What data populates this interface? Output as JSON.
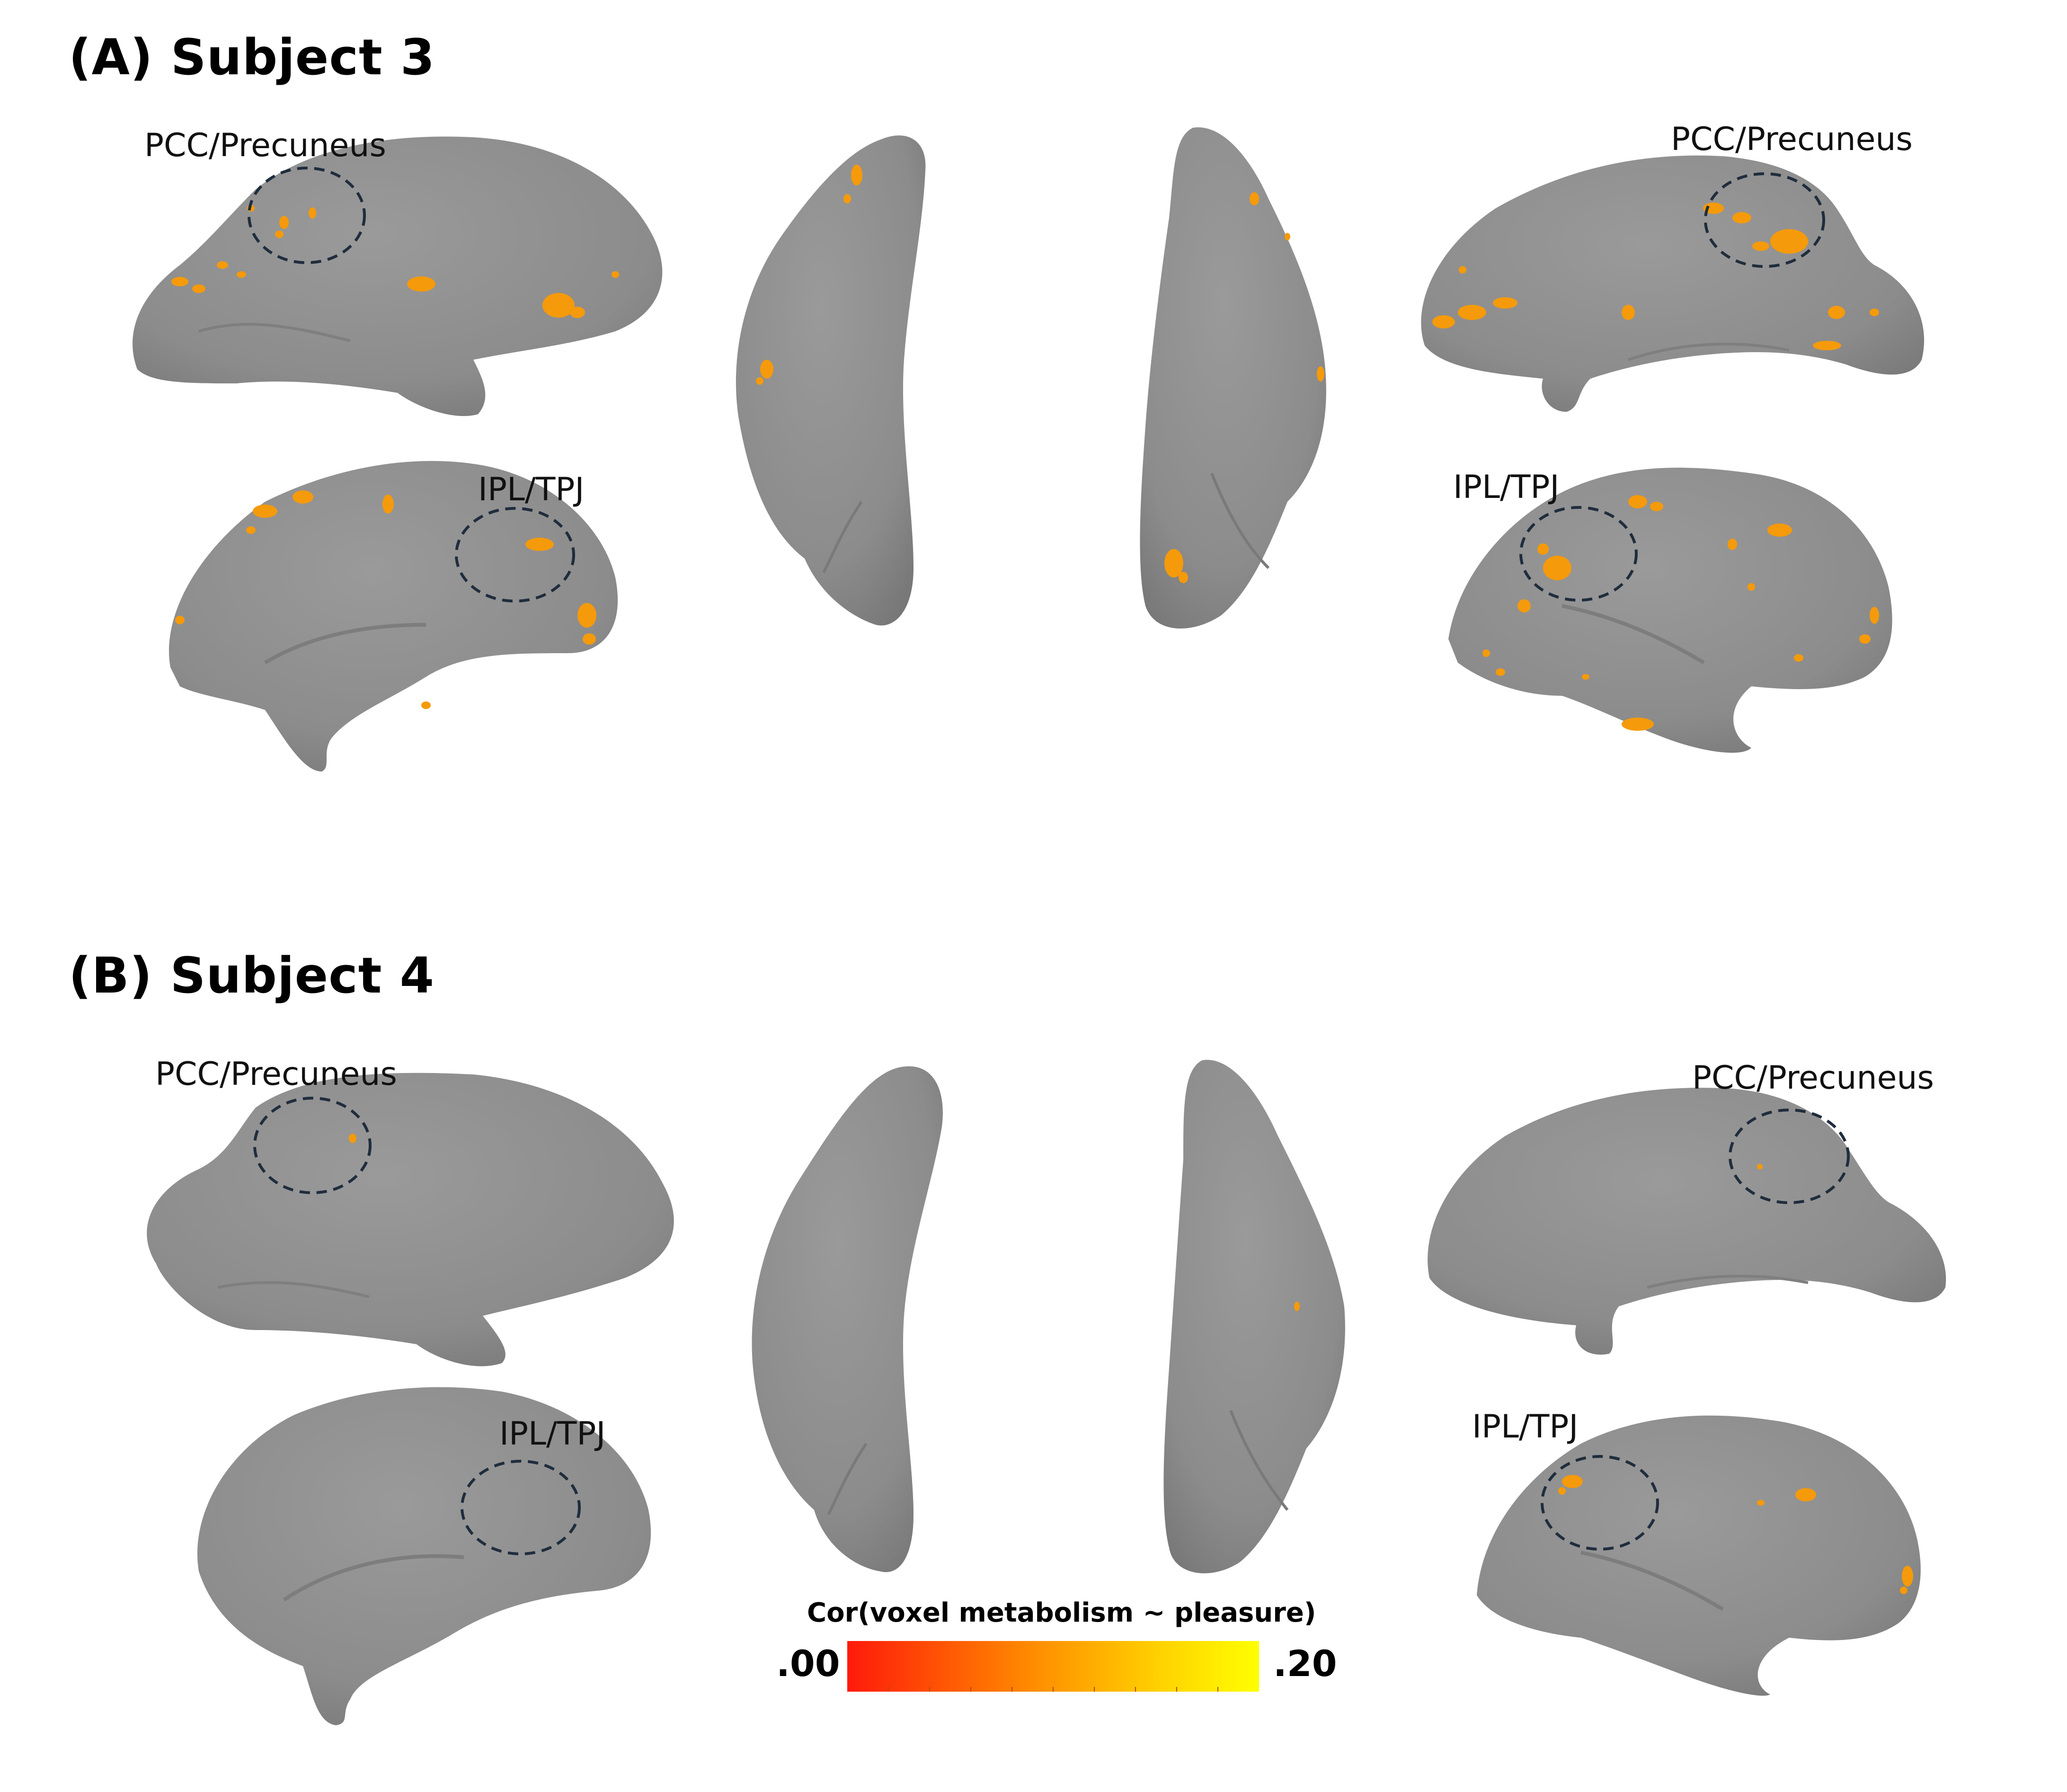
{
  "panels": [
    {
      "title": "(A) Subject 3",
      "labels": {
        "left_medial": "PCC/Precuneus",
        "left_lateral": "IPL/TPJ",
        "right_medial": "PCC/Precuneus",
        "right_lateral": "IPL/TPJ"
      }
    },
    {
      "title": "(B) Subject 4",
      "labels": {
        "left_medial": "PCC/Precuneus",
        "left_lateral": "IPL/TPJ",
        "right_medial": "PCC/Precuneus",
        "right_lateral": "IPL/TPJ"
      }
    }
  ],
  "colorbar": {
    "title": "Cor(voxel metabolism ~ pleasure)",
    "min_label": ".00",
    "max_label": ".20",
    "range": [
      0.0,
      0.2
    ],
    "colors": {
      "low": "#ff1a0a",
      "mid": "#ff8c00",
      "high": "#ffff00"
    }
  },
  "colors": {
    "surface": "#8f8f8f",
    "activation": "#f59a0a",
    "roi_circle": "#1f2d3d"
  }
}
